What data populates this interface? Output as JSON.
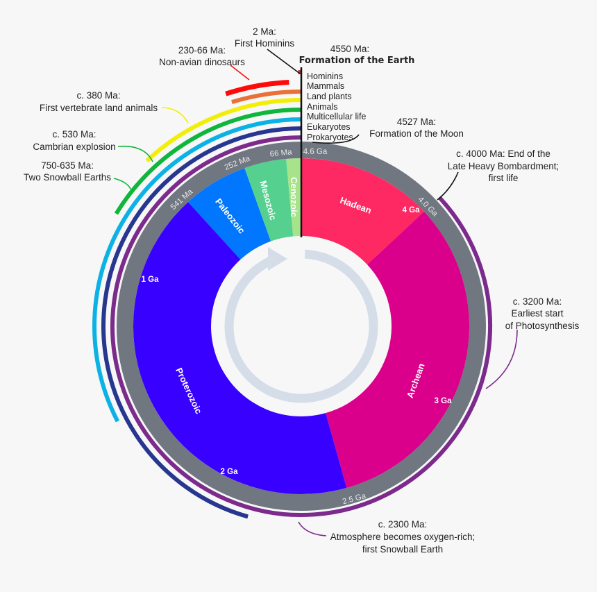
{
  "eras": [
    {
      "name": "Hadean",
      "start_ma": 4600,
      "end_ma": 4000,
      "color": "#fe2862"
    },
    {
      "name": "Archean",
      "start_ma": 4000,
      "end_ma": 2500,
      "color": "#da008c"
    },
    {
      "name": "Proterozoic",
      "start_ma": 2500,
      "end_ma": 541,
      "color": "#3700ff"
    },
    {
      "name": "Paleozoic",
      "start_ma": 541,
      "end_ma": 252,
      "color": "#0077fe"
    },
    {
      "name": "Mesozoic",
      "start_ma": 252,
      "end_ma": 66,
      "color": "#55d08f"
    },
    {
      "name": "Cenozoic",
      "start_ma": 66,
      "end_ma": 0,
      "color": "#a6e38a"
    }
  ],
  "ring_color": "#707780",
  "arrow_color": "#d5dde9",
  "ticks": {
    "t46": "4.6 Ga",
    "t66": "66 Ma",
    "t252": "252 Ma",
    "t541": "541 Ma",
    "t40": "4.0 Ga",
    "t25": "2.5 Ga"
  },
  "inner_ticks": {
    "g4": "4 Ga",
    "g3": "3 Ga",
    "g2": "2 Ga",
    "g1": "1 Ga"
  },
  "life_arcs": [
    {
      "label": "Hominins",
      "start_ma": 2,
      "color": "#e0362a"
    },
    {
      "label": "Mammals",
      "start_ma": 220,
      "color": "#ea7038"
    },
    {
      "label": "Land plants",
      "start_ma": 550,
      "color": "#f2ee0a"
    },
    {
      "label": "Animals",
      "start_ma": 750,
      "color": "#10b53c"
    },
    {
      "label": "Multicellular life",
      "start_ma": 1500,
      "color": "#0cb2e6"
    },
    {
      "label": "Eukaryotes",
      "start_ma": 2100,
      "color": "#27368f"
    },
    {
      "label": "Prokaryotes",
      "start_ma": 4000,
      "color": "#7c2b8c"
    }
  ],
  "dinosaurs": {
    "start_ma": 230,
    "end_ma": 66,
    "color": "#ff0a0a"
  },
  "annotations": {
    "earth": {
      "line1": "4550 Ma:",
      "line2": "Formation of the Earth"
    },
    "hominins": {
      "line1": "2 Ma:",
      "line2": "First Hominins"
    },
    "dinosaurs": {
      "line1": "230-66 Ma:",
      "line2": "Non-avian dinosaurs"
    },
    "vertebrates": {
      "line1": "c. 380 Ma:",
      "line2": "First vertebrate land animals"
    },
    "cambrian": {
      "line1": "c. 530 Ma:",
      "line2": "Cambrian explosion"
    },
    "snowball": {
      "line1": "750-635 Ma:",
      "line2": "Two Snowball Earths"
    },
    "moon": {
      "line1": "4527 Ma:",
      "line2": "Formation of the Moon"
    },
    "bombardment": {
      "line1": "c. 4000 Ma: End of the",
      "line2": "Late Heavy Bombardment;",
      "line3": "first life"
    },
    "photosynthesis": {
      "line1": "c. 3200 Ma:",
      "line2": "Earliest start",
      "line3": "of Photosynthesis"
    },
    "oxygen": {
      "line1": "c. 2300 Ma:",
      "line2": "Atmosphere becomes oxygen-rich;",
      "line3": "first Snowball Earth"
    }
  }
}
